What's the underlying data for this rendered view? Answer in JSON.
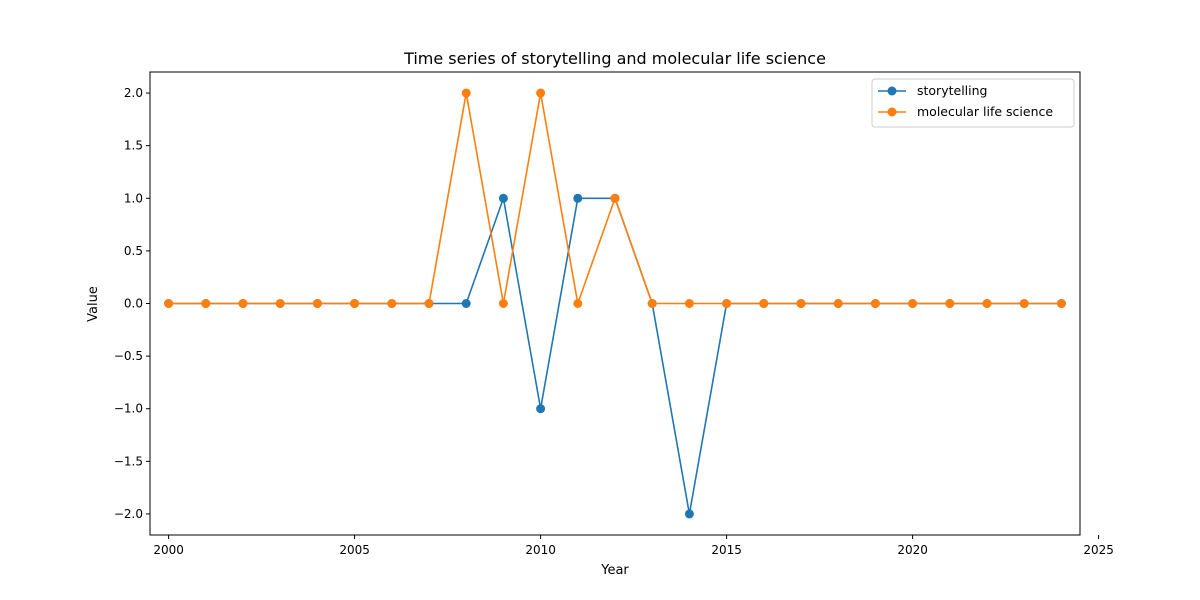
{
  "chart_data": {
    "type": "line",
    "title": "Time series of storytelling and molecular life science",
    "xlabel": "Year",
    "ylabel": "Value",
    "xlim": [
      1999.5,
      2024.5
    ],
    "ylim": [
      -2.2,
      2.2
    ],
    "x_ticks": [
      2000,
      2005,
      2010,
      2015,
      2020,
      2025
    ],
    "y_ticks": [
      2.0,
      1.5,
      1.0,
      0.5,
      0.0,
      -0.5,
      -1.0,
      -1.5,
      -2.0
    ],
    "x_tick_labels": [
      "2000",
      "2005",
      "2010",
      "2015",
      "2020",
      "2025"
    ],
    "y_tick_labels": [
      "2.0",
      "1.5",
      "1.0",
      "0.5",
      "0.0",
      "−0.5",
      "−1.0",
      "−1.5",
      "−2.0"
    ],
    "grid": false,
    "legend_position": "top-right",
    "x": [
      2000,
      2001,
      2002,
      2003,
      2004,
      2005,
      2006,
      2007,
      2008,
      2009,
      2010,
      2011,
      2012,
      2013,
      2014,
      2015,
      2016,
      2017,
      2018,
      2019,
      2020,
      2021,
      2022,
      2023,
      2024
    ],
    "series": [
      {
        "name": "storytelling",
        "color": "#1f77b4",
        "values": [
          0,
          0,
          0,
          0,
          0,
          0,
          0,
          0,
          0,
          1,
          -1,
          1,
          1,
          0,
          -2,
          0,
          0,
          0,
          0,
          0,
          0,
          0,
          0,
          0,
          0
        ]
      },
      {
        "name": "molecular life science",
        "color": "#ff7f0e",
        "values": [
          0,
          0,
          0,
          0,
          0,
          0,
          0,
          0,
          2,
          0,
          2,
          0,
          1,
          0,
          0,
          0,
          0,
          0,
          0,
          0,
          0,
          0,
          0,
          0,
          0
        ]
      }
    ]
  }
}
